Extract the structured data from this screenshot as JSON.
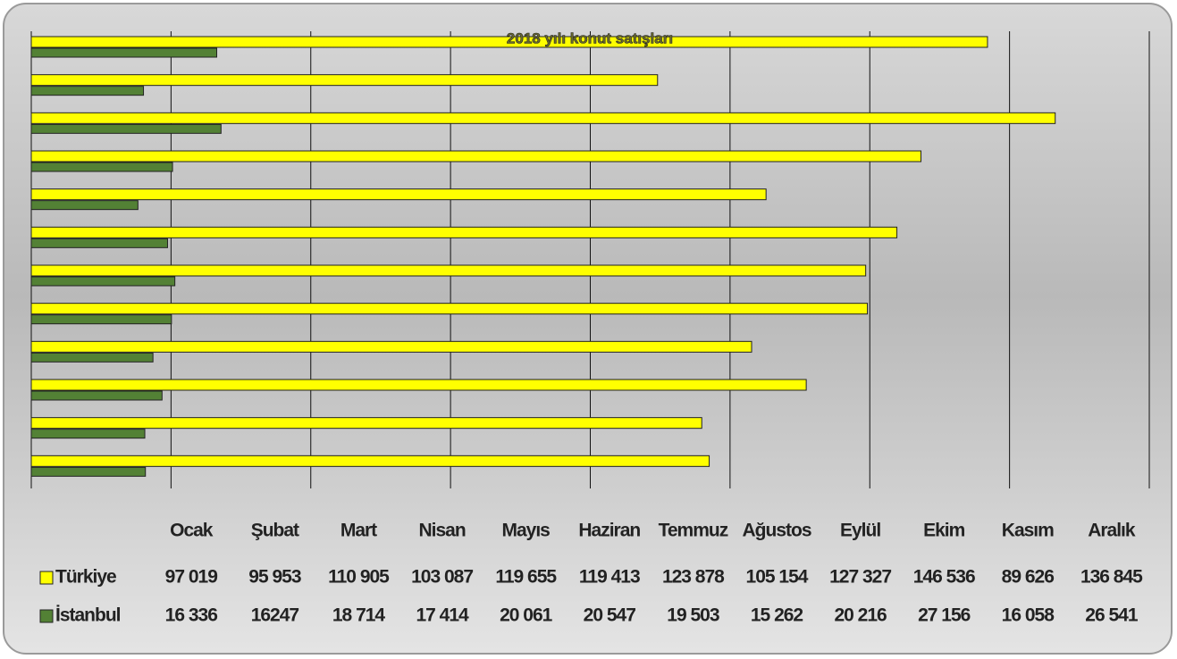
{
  "chart_data": {
    "type": "bar",
    "orientation": "horizontal",
    "title": "2018 yılı konut satışları",
    "categories": [
      "Ocak",
      "Şubat",
      "Mart",
      "Nisan",
      "Mayıs",
      "Haziran",
      "Temmuz",
      "Ağustos",
      "Eylül",
      "Ekim",
      "Kasım",
      "Aralık"
    ],
    "series": [
      {
        "name": "Türkiye",
        "color": "#ffff00",
        "values": [
          97019,
          95953,
          110905,
          103087,
          119655,
          119413,
          123878,
          105154,
          127327,
          146536,
          89626,
          136845
        ],
        "value_labels": [
          "97 019",
          "95 953",
          "110 905",
          "103 087",
          "119 655",
          "119 413",
          "123 878",
          "105 154",
          "127 327",
          "146 536",
          "89 626",
          "136 845"
        ]
      },
      {
        "name": "İstanbul",
        "color": "#538135",
        "values": [
          16336,
          16247,
          18714,
          17414,
          20061,
          20547,
          19503,
          15262,
          20216,
          27156,
          16058,
          26541
        ],
        "value_labels": [
          "16 336",
          "16247",
          "18 714",
          "17 414",
          "20 061",
          "20 547",
          "19 503",
          "15 262",
          "20 216",
          "27 156",
          "16 058",
          "26 541"
        ]
      }
    ],
    "xlim": [
      0,
      160000
    ],
    "xticks": [
      0,
      20000,
      40000,
      60000,
      80000,
      100000,
      120000,
      140000,
      160000
    ],
    "grid": true,
    "legend": "bottom"
  }
}
